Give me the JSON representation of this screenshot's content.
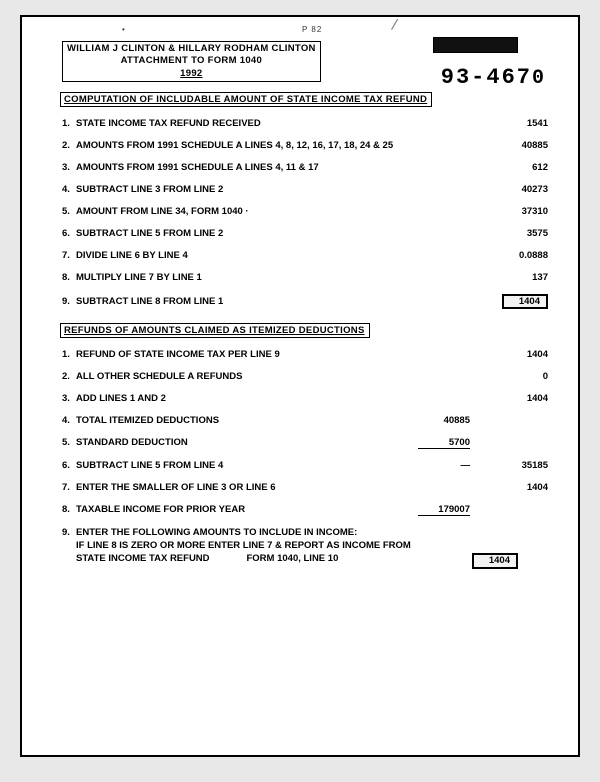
{
  "top": {
    "dot": "•",
    "p82": "P 82"
  },
  "header": {
    "line1": "WILLIAM J CLINTON & HILLARY RODHAM CLINTON",
    "line2": "ATTACHMENT TO FORM 1040",
    "line3": "1992"
  },
  "docnum_main": "93-467",
  "docnum_last": "0",
  "section1_title": "COMPUTATION OF INCLUDABLE AMOUNT OF STATE INCOME TAX REFUND",
  "s1": [
    {
      "n": "1.",
      "label": "STATE INCOME TAX REFUND RECEIVED",
      "val": "1541"
    },
    {
      "n": "2.",
      "label": "AMOUNTS FROM 1991 SCHEDULE A LINES 4, 8, 12, 16, 17, 18, 24 & 25",
      "val": "40885"
    },
    {
      "n": "3.",
      "label": "AMOUNTS FROM 1991 SCHEDULE A LINES 4, 11 & 17",
      "val": "612"
    },
    {
      "n": "4.",
      "label": "SUBTRACT LINE 3 FROM LINE 2",
      "val": "40273"
    },
    {
      "n": "5.",
      "label": "AMOUNT FROM LINE 34, FORM 1040   ·",
      "val": "37310"
    },
    {
      "n": "6.",
      "label": "SUBTRACT LINE 5 FROM LINE 2",
      "val": "3575"
    },
    {
      "n": "7.",
      "label": "DIVIDE LINE 6 BY LINE 4",
      "val": "0.0888"
    },
    {
      "n": "8.",
      "label": "MULTIPLY LINE 7 BY LINE 1",
      "val": "137"
    },
    {
      "n": "9.",
      "label": "SUBTRACT LINE 8 FROM LINE 1",
      "val": "1404",
      "boxed": true
    }
  ],
  "section2_title": "REFUNDS OF AMOUNTS CLAIMED AS ITEMIZED DEDUCTIONS",
  "s2": [
    {
      "n": "1.",
      "label": "REFUND OF STATE INCOME TAX PER LINE 9",
      "val": "1404"
    },
    {
      "n": "2.",
      "label": "ALL OTHER SCHEDULE A REFUNDS",
      "val": "0"
    },
    {
      "n": "3.",
      "label": "ADD LINES 1 AND 2",
      "val": "1404"
    },
    {
      "n": "4.",
      "label": "TOTAL ITEMIZED DEDUCTIONS",
      "mid": "40885",
      "val": ""
    },
    {
      "n": "5.",
      "label": "STANDARD DEDUCTION",
      "mid": "5700",
      "mid_underline": true,
      "val": ""
    },
    {
      "n": "6.",
      "label": "SUBTRACT LINE 5 FROM LINE 4",
      "mid_dash": true,
      "val": "35185"
    },
    {
      "n": "7.",
      "label": "ENTER THE SMALLER OF LINE 3 OR LINE 6",
      "val": "1404"
    },
    {
      "n": "8.",
      "label": "TAXABLE INCOME FOR PRIOR YEAR",
      "mid": "179007",
      "mid_underline": true,
      "val": ""
    }
  ],
  "footer": {
    "n": "9.",
    "line1": "ENTER THE FOLLOWING AMOUNTS TO INCLUDE IN INCOME:",
    "line2": "IF LINE 8 IS ZERO OR MORE ENTER LINE 7 & REPORT AS INCOME FROM",
    "line3a": "STATE INCOME TAX REFUND",
    "line3b": "FORM 1040, LINE 10",
    "val": "1404"
  }
}
